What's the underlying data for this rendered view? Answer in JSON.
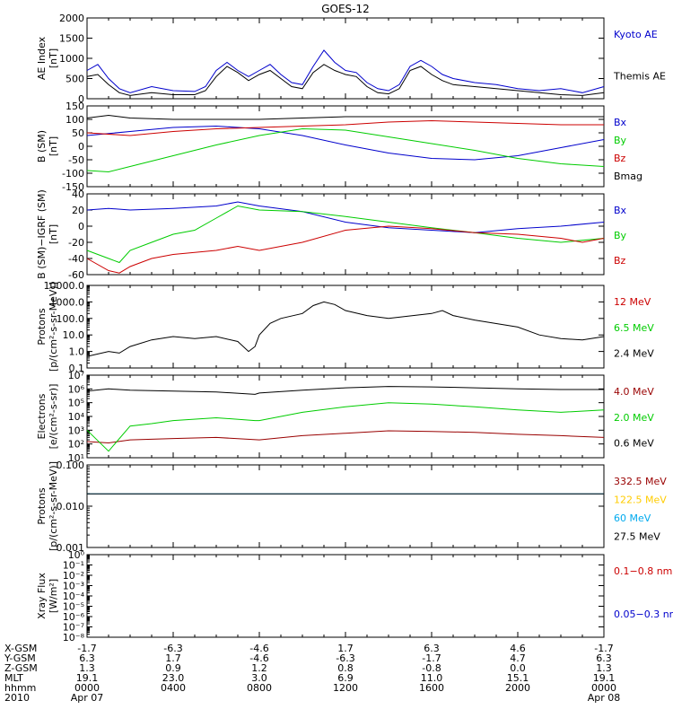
{
  "title": "GOES-12",
  "chart_data": [
    {
      "type": "line",
      "ylabel": [
        "AE Index",
        "[nT]"
      ],
      "ylim": [
        0,
        2000
      ],
      "yticks": [
        "0",
        "500",
        "1000",
        "1500",
        "2000"
      ],
      "yticks_values": [
        0,
        500,
        1000,
        1500,
        2000
      ],
      "scale": "linear",
      "series": [
        {
          "name": "Kyoto AE",
          "color": "#0000cc",
          "x": [
            0,
            0.5,
            1,
            1.5,
            2,
            3,
            4,
            5,
            5.5,
            6,
            6.5,
            7,
            7.5,
            8,
            8.5,
            9,
            9.5,
            10,
            10.5,
            11,
            11.5,
            12,
            12.5,
            13,
            13.5,
            14,
            14.5,
            15,
            15.5,
            16,
            16.5,
            17,
            18,
            19,
            20,
            21,
            22,
            23,
            24
          ],
          "y": [
            700,
            850,
            500,
            250,
            150,
            300,
            200,
            180,
            300,
            700,
            900,
            700,
            550,
            700,
            850,
            600,
            400,
            350,
            800,
            1200,
            900,
            700,
            650,
            400,
            250,
            200,
            350,
            800,
            950,
            800,
            600,
            500,
            400,
            350,
            250,
            200,
            250,
            150,
            300
          ]
        },
        {
          "name": "Themis AE",
          "color": "#000000",
          "x": [
            0,
            0.5,
            1,
            1.5,
            2,
            3,
            4,
            5,
            5.5,
            6,
            6.5,
            7,
            7.5,
            8,
            8.5,
            9,
            9.5,
            10,
            10.5,
            11,
            11.5,
            12,
            12.5,
            13,
            13.5,
            14,
            14.5,
            15,
            15.5,
            16,
            16.5,
            17,
            18,
            19,
            20,
            21,
            22,
            23,
            24
          ],
          "y": [
            550,
            600,
            350,
            150,
            80,
            150,
            100,
            100,
            200,
            550,
            800,
            650,
            450,
            600,
            700,
            500,
            300,
            250,
            650,
            850,
            700,
            600,
            550,
            300,
            150,
            120,
            250,
            700,
            800,
            600,
            450,
            350,
            300,
            250,
            200,
            150,
            100,
            80,
            150
          ]
        }
      ]
    },
    {
      "type": "line",
      "ylabel": [
        "B (SM)",
        "[nT]"
      ],
      "ylim": [
        -150,
        150
      ],
      "yticks": [
        "-150",
        "-100",
        "-50",
        "0",
        "50",
        "100",
        "150"
      ],
      "yticks_values": [
        -150,
        -100,
        -50,
        0,
        50,
        100,
        150
      ],
      "scale": "linear",
      "series": [
        {
          "name": "Bx",
          "color": "#0000cc",
          "x": [
            0,
            2,
            4,
            6,
            8,
            10,
            12,
            14,
            16,
            18,
            20,
            22,
            24
          ],
          "y": [
            40,
            55,
            70,
            75,
            65,
            40,
            5,
            -25,
            -45,
            -50,
            -35,
            -5,
            25
          ]
        },
        {
          "name": "By",
          "color": "#00cc00",
          "x": [
            0,
            1,
            2,
            4,
            6,
            8,
            10,
            12,
            14,
            16,
            18,
            20,
            22,
            24
          ],
          "y": [
            -90,
            -95,
            -75,
            -35,
            5,
            40,
            65,
            60,
            35,
            10,
            -15,
            -45,
            -65,
            -75
          ]
        },
        {
          "name": "Bz",
          "color": "#cc0000",
          "x": [
            0,
            2,
            4,
            6,
            8,
            10,
            12,
            14,
            16,
            18,
            20,
            22,
            24
          ],
          "y": [
            50,
            40,
            55,
            65,
            70,
            75,
            80,
            90,
            95,
            90,
            85,
            80,
            80
          ]
        },
        {
          "name": "Bmag",
          "color": "#000000",
          "x": [
            0,
            1,
            2,
            4,
            6,
            8,
            10,
            12,
            14,
            16,
            18,
            20,
            22,
            24
          ],
          "y": [
            105,
            115,
            105,
            100,
            100,
            100,
            105,
            110,
            110,
            110,
            110,
            110,
            110,
            110
          ]
        }
      ]
    },
    {
      "type": "line",
      "ylabel": [
        "B (SM)−IGRF (SM)",
        "[nT]"
      ],
      "ylim": [
        -60,
        40
      ],
      "yticks": [
        "-60",
        "-40",
        "-20",
        "0",
        "20",
        "40"
      ],
      "yticks_values": [
        -60,
        -40,
        -20,
        0,
        20,
        40
      ],
      "scale": "linear",
      "series": [
        {
          "name": "Bx",
          "color": "#0000cc",
          "x": [
            0,
            1,
            2,
            4,
            6,
            7,
            8,
            10,
            12,
            14,
            16,
            18,
            20,
            22,
            24
          ],
          "y": [
            20,
            22,
            20,
            22,
            25,
            30,
            25,
            18,
            5,
            -2,
            -5,
            -8,
            -3,
            0,
            5
          ]
        },
        {
          "name": "By",
          "color": "#00cc00",
          "x": [
            0,
            1,
            1.5,
            2,
            3,
            4,
            5,
            6,
            7,
            8,
            10,
            12,
            14,
            16,
            18,
            20,
            22,
            24
          ],
          "y": [
            -30,
            -40,
            -45,
            -30,
            -20,
            -10,
            -5,
            10,
            25,
            20,
            18,
            12,
            5,
            -2,
            -8,
            -15,
            -20,
            -15
          ]
        },
        {
          "name": "Bz",
          "color": "#cc0000",
          "x": [
            0,
            1,
            1.5,
            2,
            3,
            4,
            6,
            7,
            8,
            10,
            12,
            14,
            16,
            18,
            20,
            22,
            23,
            24
          ],
          "y": [
            -40,
            -55,
            -58,
            -50,
            -40,
            -35,
            -30,
            -25,
            -30,
            -20,
            -5,
            0,
            -3,
            -8,
            -10,
            -15,
            -20,
            -15
          ]
        }
      ]
    },
    {
      "type": "line",
      "ylabel": [
        "Protons",
        "[p/(cm²-s-sr-MeV)]"
      ],
      "ylim": [
        0.1,
        10000
      ],
      "yticks": [
        "0.1",
        "1.0",
        "10.0",
        "100.0",
        "1000.0",
        "10000.0"
      ],
      "yticks_values": [
        0.1,
        1,
        10,
        100,
        1000,
        10000
      ],
      "scale": "log",
      "series": [
        {
          "name": "12 MeV",
          "color": "#cc0000",
          "x": [],
          "y": []
        },
        {
          "name": "6.5 MeV",
          "color": "#00cc00",
          "x": [],
          "y": []
        },
        {
          "name": "2.4 MeV",
          "color": "#000000",
          "x": [
            0,
            1,
            1.5,
            2,
            3,
            4,
            5,
            6,
            7,
            7.5,
            7.8,
            8,
            8.5,
            9,
            10,
            10.5,
            11,
            11.5,
            12,
            13,
            14,
            16,
            16.5,
            17,
            18,
            20,
            21,
            22,
            23,
            24
          ],
          "y": [
            0.5,
            1,
            0.8,
            2,
            5,
            8,
            6,
            8,
            4,
            1,
            2,
            10,
            50,
            100,
            200,
            600,
            1000,
            700,
            300,
            150,
            100,
            200,
            300,
            150,
            80,
            30,
            10,
            6,
            5,
            8
          ]
        }
      ]
    },
    {
      "type": "line",
      "ylabel": [
        "Electrons",
        "[e/(cm²-s-sr)]"
      ],
      "ylim": [
        10,
        10000000
      ],
      "yticks": [
        "10¹",
        "10²",
        "10³",
        "10⁴",
        "10⁵",
        "10⁶",
        "10⁷"
      ],
      "yticks_values": [
        10,
        100,
        1000,
        10000,
        100000,
        1000000,
        10000000
      ],
      "scale": "log",
      "series": [
        {
          "name": "4.0 MeV",
          "color": "#990000",
          "x": [
            0,
            1,
            2,
            4,
            6,
            8,
            10,
            12,
            14,
            16,
            18,
            20,
            22,
            24
          ],
          "y": [
            150,
            120,
            200,
            250,
            300,
            200,
            400,
            600,
            900,
            800,
            700,
            500,
            400,
            300
          ]
        },
        {
          "name": "2.0 MeV",
          "color": "#00cc00",
          "x": [
            0,
            1,
            2,
            3,
            4,
            6,
            7.8,
            8,
            10,
            12,
            14,
            16,
            18,
            20,
            22,
            24
          ],
          "y": [
            1000,
            30,
            2000,
            3000,
            5000,
            8000,
            5000,
            5000,
            20000,
            50000,
            100000,
            80000,
            50000,
            30000,
            20000,
            30000
          ]
        },
        {
          "name": "0.6 MeV",
          "color": "#000000",
          "x": [
            0,
            1,
            2,
            4,
            6,
            7.8,
            8,
            10,
            12,
            14,
            16,
            18,
            20,
            22,
            24
          ],
          "y": [
            700000,
            1000000,
            800000,
            700000,
            600000,
            400000,
            500000,
            800000,
            1200000,
            1500000,
            1400000,
            1200000,
            1000000,
            900000,
            900000
          ]
        }
      ]
    },
    {
      "type": "line",
      "ylabel": [
        "Protons",
        "[p/(cm²-s-sr-MeV)]"
      ],
      "ylim": [
        0.001,
        0.1
      ],
      "yticks": [
        "0.001",
        "0.010",
        "0.100"
      ],
      "yticks_values": [
        0.001,
        0.01,
        0.1
      ],
      "scale": "log",
      "series": [
        {
          "name": "332.5 MeV",
          "color": "#990000",
          "x": [],
          "y": []
        },
        {
          "name": "122.5 MeV",
          "color": "#ffcc00",
          "x": [],
          "y": []
        },
        {
          "name": "60 MeV",
          "color": "#00aaee",
          "x": [
            0,
            24
          ],
          "y": [
            0.02,
            0.02
          ]
        },
        {
          "name": "27.5 MeV",
          "color": "#000000",
          "x": [
            0,
            24
          ],
          "y": [
            0.02,
            0.02
          ]
        }
      ]
    },
    {
      "type": "line",
      "ylabel": [
        "Xray Flux",
        "[W/m²]"
      ],
      "ylim": [
        1e-08,
        1
      ],
      "yticks": [
        "10⁻⁸",
        "10⁻⁷",
        "10⁻⁶",
        "10⁻⁵",
        "10⁻⁴",
        "10⁻³",
        "10⁻²",
        "10⁻¹",
        "10⁰"
      ],
      "yticks_values": [
        1e-08,
        1e-07,
        1e-06,
        1e-05,
        0.0001,
        0.001,
        0.01,
        0.1,
        1
      ],
      "scale": "log",
      "series": [
        {
          "name": "0.1−0.8 nm",
          "color": "#cc0000",
          "x": [],
          "y": []
        },
        {
          "name": "0.05−0.3 nm",
          "color": "#0000cc",
          "x": [],
          "y": []
        }
      ]
    }
  ],
  "x_axis": {
    "xlim": [
      0,
      24
    ],
    "ticks_hours": [
      0,
      4,
      8,
      12,
      16,
      20,
      24
    ],
    "rows": [
      {
        "label": "X-GSM",
        "values": [
          "-1.7",
          "-6.3",
          "-4.6",
          "1.7",
          "6.3",
          "4.6",
          "-1.7"
        ]
      },
      {
        "label": "Y-GSM",
        "values": [
          "6.3",
          "1.7",
          "-4.6",
          "-6.3",
          "-1.7",
          "4.7",
          "6.3"
        ]
      },
      {
        "label": "Z-GSM",
        "values": [
          "1.3",
          "0.9",
          "1.2",
          "0.8",
          "-0.8",
          "0.0",
          "1.3"
        ]
      },
      {
        "label": "MLT",
        "values": [
          "19.1",
          "23.0",
          "3.0",
          "6.9",
          "11.0",
          "15.1",
          "19.1"
        ]
      },
      {
        "label": "hhmm",
        "values": [
          "0000",
          "0400",
          "0800",
          "1200",
          "1600",
          "2000",
          "0000"
        ]
      },
      {
        "label": "2010",
        "values": [
          "Apr 07",
          "",
          "",
          "",
          "",
          "",
          "Apr 08"
        ]
      }
    ]
  }
}
